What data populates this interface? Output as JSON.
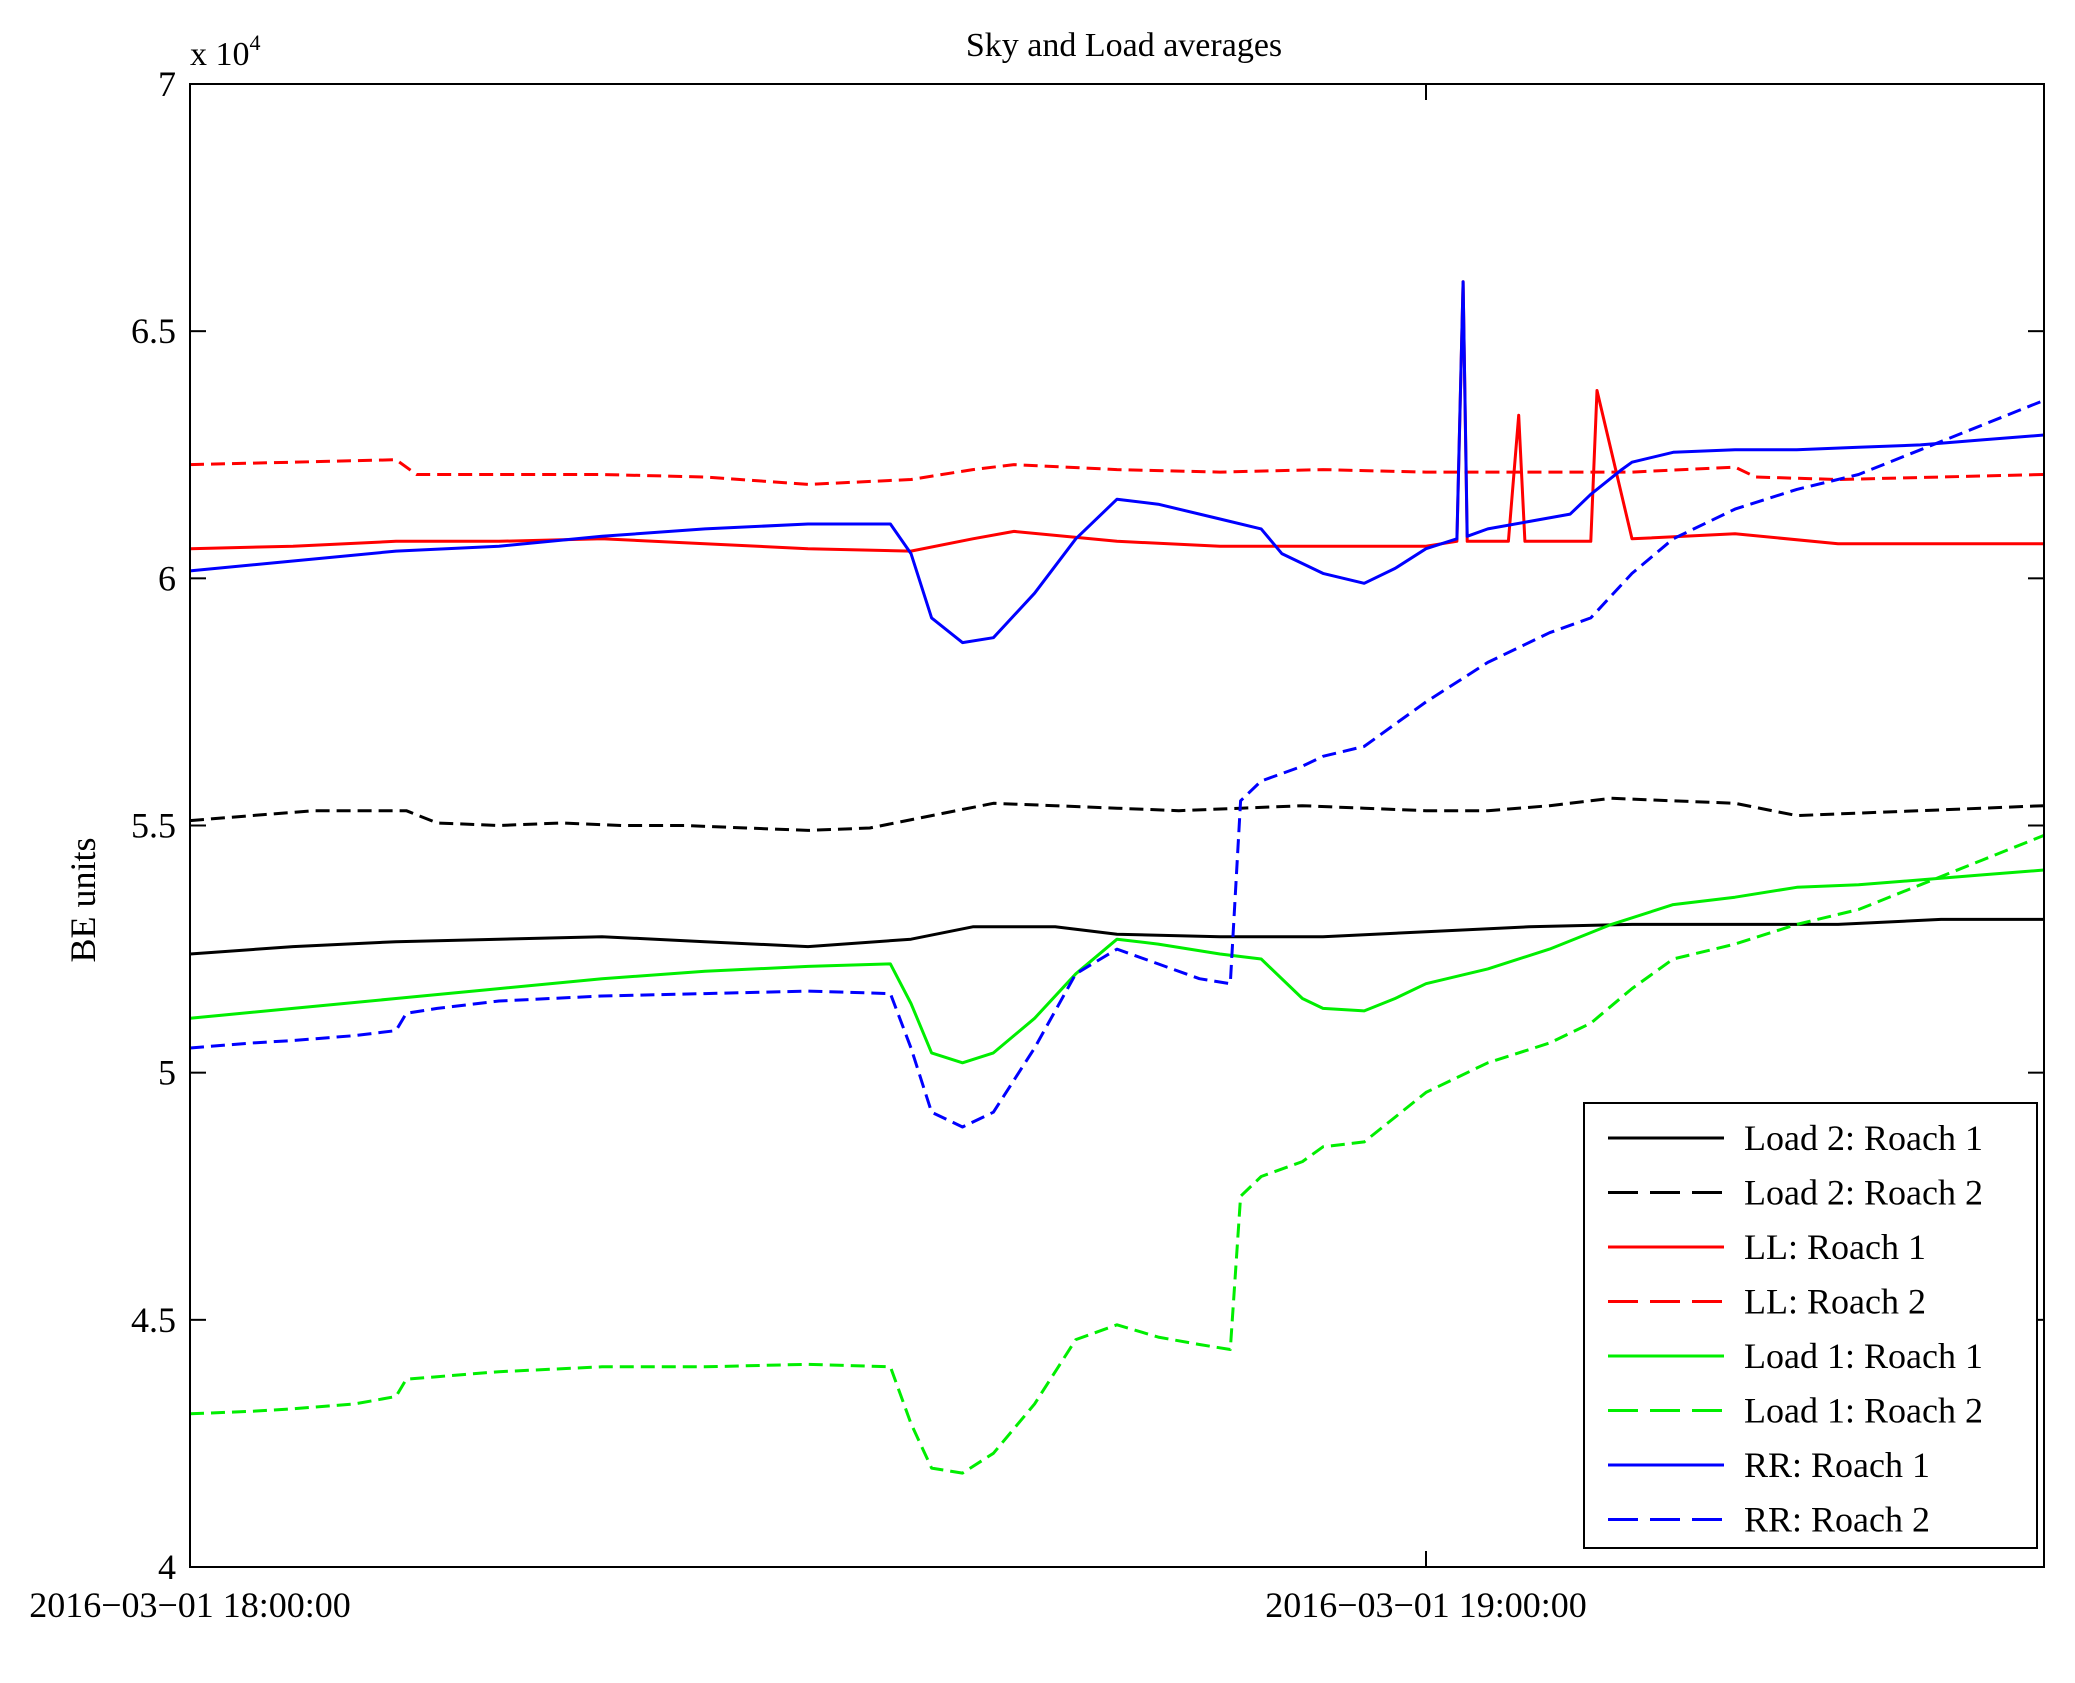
{
  "chart_data": {
    "type": "line",
    "title": "Sky and Load averages",
    "xlabel": "",
    "ylabel": "BE units",
    "y_multiplier_label": "x 10",
    "y_multiplier_exp": "4",
    "xlim": [
      "2016-03-01 18:00:00",
      "2016-03-01 19:30:00"
    ],
    "ylim": [
      40000,
      70000
    ],
    "y_ticks": [
      40000,
      45000,
      50000,
      55000,
      60000,
      65000,
      70000
    ],
    "y_tick_labels": [
      "4",
      "4.5",
      "5",
      "5.5",
      "6",
      "6.5",
      "7"
    ],
    "x_ticks": [
      "2016-03-01 18:00:00",
      "2016-03-01 19:00:00"
    ],
    "x_tick_labels": [
      "2016−03−01 18:00:00",
      "2016−03−01 19:00:00"
    ],
    "x_unit": "minutes after 2016-03-01 18:00:00",
    "grid": false,
    "legend_position": "bottom-right",
    "series": [
      {
        "name": "Load 2: Roach 1",
        "color": "#000000",
        "dash": "solid",
        "x": [
          0,
          5,
          10,
          15,
          20,
          25,
          30,
          35,
          38,
          42,
          45,
          50,
          55,
          60,
          65,
          70,
          75,
          80,
          85,
          90
        ],
        "y": [
          52400,
          52550,
          52650,
          52700,
          52750,
          52650,
          52550,
          52700,
          52950,
          52950,
          52800,
          52750,
          52750,
          52850,
          52950,
          53000,
          53000,
          53000,
          53100,
          53100
        ]
      },
      {
        "name": "Load 2: Roach 2",
        "color": "#000000",
        "dash": "dashed",
        "x": [
          0,
          3,
          6,
          9,
          10.5,
          12,
          15,
          18,
          21,
          24,
          27,
          30,
          33,
          36,
          39,
          42,
          45,
          48,
          51,
          54,
          57,
          60,
          63,
          66,
          69,
          72,
          75,
          78,
          81,
          84,
          87,
          90
        ],
        "y": [
          55100,
          55200,
          55300,
          55300,
          55300,
          55050,
          55000,
          55050,
          55000,
          55000,
          54950,
          54900,
          54950,
          55200,
          55450,
          55400,
          55350,
          55300,
          55350,
          55400,
          55350,
          55300,
          55300,
          55400,
          55550,
          55500,
          55450,
          55200,
          55250,
          55300,
          55350,
          55400
        ]
      },
      {
        "name": "LL: Roach 1",
        "color": "#ff0000",
        "dash": "solid",
        "x": [
          0,
          5,
          10,
          15,
          20,
          25,
          30,
          35,
          38,
          40,
          45,
          50,
          55,
          60,
          61.5,
          61.8,
          62,
          64,
          64.5,
          64.8,
          65.5,
          68,
          68.3,
          70,
          75,
          80,
          85,
          90
        ],
        "y": [
          60600,
          60650,
          60750,
          60750,
          60800,
          60700,
          60600,
          60550,
          60800,
          60950,
          60750,
          60650,
          60650,
          60650,
          60750,
          66000,
          60750,
          60750,
          63300,
          60750,
          60750,
          60750,
          63800,
          60800,
          60900,
          60700,
          60700,
          60700
        ]
      },
      {
        "name": "LL: Roach 2",
        "color": "#ff0000",
        "dash": "dashed",
        "x": [
          0,
          5,
          10,
          11,
          15,
          20,
          25,
          30,
          35,
          38,
          40,
          45,
          50,
          55,
          60,
          65,
          70,
          75,
          76,
          80,
          85,
          90
        ],
        "y": [
          62300,
          62350,
          62400,
          62100,
          62100,
          62100,
          62050,
          61900,
          62000,
          62200,
          62300,
          62200,
          62150,
          62200,
          62150,
          62150,
          62150,
          62250,
          62050,
          62000,
          62050,
          62100
        ]
      },
      {
        "name": "Load 1: Roach 1",
        "color": "#00ee00",
        "dash": "solid",
        "x": [
          0,
          5,
          10,
          15,
          20,
          25,
          30,
          34,
          35,
          36,
          37.5,
          39,
          41,
          43,
          45,
          47,
          50,
          52,
          54,
          55,
          57,
          58.5,
          60,
          63,
          66,
          69,
          72,
          75,
          78,
          81,
          84,
          87,
          90
        ],
        "y": [
          51100,
          51300,
          51500,
          51700,
          51900,
          52050,
          52150,
          52200,
          51400,
          50400,
          50200,
          50400,
          51100,
          52000,
          52700,
          52600,
          52400,
          52300,
          51500,
          51300,
          51250,
          51500,
          51800,
          52100,
          52500,
          53000,
          53400,
          53550,
          53750,
          53800,
          53900,
          54000,
          54100
        ]
      },
      {
        "name": "Load 1: Roach 2",
        "color": "#00ee00",
        "dash": "dashed",
        "x": [
          0,
          3,
          5,
          8,
          10,
          10.5,
          12,
          15,
          20,
          25,
          30,
          34,
          35,
          36,
          37.5,
          39,
          41,
          43,
          45,
          47,
          49,
          50.5,
          51,
          52,
          54,
          55,
          57,
          60,
          63,
          66,
          68,
          70,
          72,
          75,
          78,
          81,
          84,
          87,
          90
        ],
        "y": [
          43100,
          43150,
          43200,
          43300,
          43450,
          43800,
          43850,
          43950,
          44050,
          44050,
          44100,
          44050,
          42900,
          42000,
          41900,
          42300,
          43300,
          44600,
          44900,
          44650,
          44500,
          44400,
          47500,
          47900,
          48200,
          48500,
          48600,
          49600,
          50200,
          50600,
          51000,
          51700,
          52300,
          52600,
          53000,
          53300,
          53800,
          54300,
          54800
        ]
      },
      {
        "name": "RR: Roach 1",
        "color": "#0000ff",
        "dash": "solid",
        "x": [
          0,
          5,
          10,
          15,
          20,
          25,
          30,
          34,
          35,
          36,
          37.5,
          39,
          41,
          43,
          45,
          47,
          50,
          52,
          53,
          55,
          57,
          58.5,
          60,
          61.5,
          61.8,
          62,
          63,
          65,
          67,
          68,
          69.5,
          70,
          72,
          75,
          78,
          81,
          84,
          87,
          90
        ],
        "y": [
          60150,
          60350,
          60550,
          60650,
          60850,
          61000,
          61100,
          61100,
          60500,
          59200,
          58700,
          58800,
          59700,
          60800,
          61600,
          61500,
          61200,
          61000,
          60500,
          60100,
          59900,
          60200,
          60600,
          60800,
          66000,
          60850,
          61000,
          61150,
          61300,
          61700,
          62200,
          62350,
          62550,
          62600,
          62600,
          62650,
          62700,
          62800,
          62900
        ]
      },
      {
        "name": "RR: Roach 2",
        "color": "#0000ff",
        "dash": "dashed",
        "x": [
          0,
          3,
          5,
          8,
          10,
          10.5,
          12,
          15,
          20,
          25,
          30,
          34,
          35,
          36,
          37.5,
          39,
          41,
          43,
          45,
          47,
          49,
          50.5,
          51,
          52,
          54,
          55,
          57,
          60,
          63,
          66,
          68,
          70,
          72,
          75,
          78,
          81,
          84,
          87,
          90
        ],
        "y": [
          50500,
          50600,
          50650,
          50750,
          50850,
          51200,
          51300,
          51450,
          51550,
          51600,
          51650,
          51600,
          50500,
          49200,
          48900,
          49200,
          50500,
          52000,
          52500,
          52200,
          51900,
          51800,
          55500,
          55900,
          56200,
          56400,
          56600,
          57500,
          58300,
          58900,
          59200,
          60100,
          60800,
          61400,
          61800,
          62100,
          62600,
          63100,
          63600
        ]
      }
    ]
  }
}
